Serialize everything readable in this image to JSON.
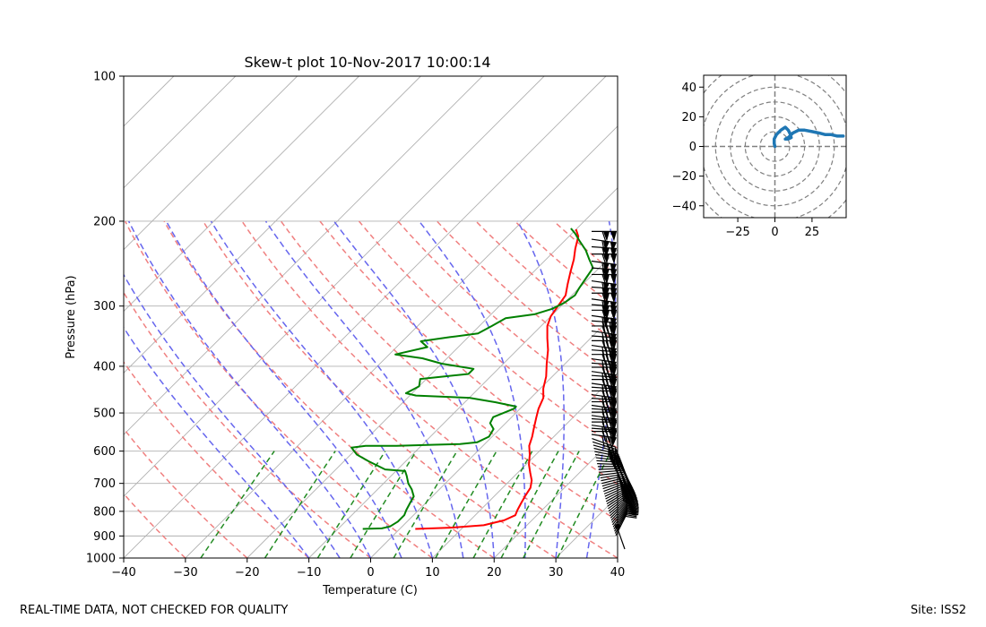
{
  "footer": {
    "quality_note": "REAL-TIME DATA, NOT CHECKED FOR QUALITY",
    "site": "Site: ISS2"
  },
  "colors": {
    "temperature": "#ff0000",
    "dewpoint": "#008000",
    "dry_adiabat": "#f08080",
    "moist_adiabat": "#6666ee",
    "mixing_ratio": "#228b22",
    "hodograph": "#1f77b4"
  },
  "chart_data": [
    {
      "type": "line",
      "subtype": "skew-t",
      "title": "Skew-t plot 10-Nov-2017 10:00:14",
      "xlabel": "Temperature (C)",
      "ylabel": "Pressure (hPa)",
      "xlim": [
        -40,
        40
      ],
      "ylim": [
        1000,
        100
      ],
      "y_scale": "log",
      "grid": true,
      "x_ticks": [
        "−40",
        "−30",
        "−20",
        "−10",
        "0",
        "10",
        "20",
        "30",
        "40"
      ],
      "y_ticks": [
        "100",
        "200",
        "300",
        "400",
        "500",
        "600",
        "700",
        "800",
        "900",
        "1000"
      ],
      "series": [
        {
          "role": "temperature",
          "points": [
            [
              2.5,
              870
            ],
            [
              8,
              865
            ],
            [
              13,
              855
            ],
            [
              15.5,
              835
            ],
            [
              16.5,
              815
            ],
            [
              16,
              795
            ],
            [
              15.5,
              770
            ],
            [
              15,
              745
            ],
            [
              14.5,
              715
            ],
            [
              13.5,
              690
            ],
            [
              12,
              665
            ],
            [
              10.5,
              640
            ],
            [
              9,
              610
            ],
            [
              7.5,
              585
            ],
            [
              6.5,
              560
            ],
            [
              5.5,
              540
            ],
            [
              4,
              510
            ],
            [
              3,
              490
            ],
            [
              2,
              465
            ],
            [
              0.5,
              445
            ],
            [
              -1,
              420
            ],
            [
              -3,
              395
            ],
            [
              -5,
              370
            ],
            [
              -7,
              350
            ],
            [
              -9,
              330
            ],
            [
              -10,
              315
            ],
            [
              -10.5,
              300
            ],
            [
              -11,
              285
            ],
            [
              -12.5,
              270
            ],
            [
              -14,
              255
            ],
            [
              -15.5,
              240
            ],
            [
              -17,
              228
            ],
            [
              -18.5,
              215
            ],
            [
              -20,
              208
            ]
          ]
        },
        {
          "role": "dewpoint",
          "points": [
            [
              -6,
              870
            ],
            [
              -3,
              868
            ],
            [
              -2,
              860
            ],
            [
              -1.5,
              840
            ],
            [
              -1.5,
              815
            ],
            [
              -2,
              795
            ],
            [
              -2.5,
              770
            ],
            [
              -3,
              745
            ],
            [
              -4.5,
              720
            ],
            [
              -6,
              700
            ],
            [
              -7.5,
              675
            ],
            [
              -8.5,
              660
            ],
            [
              -12,
              655
            ],
            [
              -16,
              630
            ],
            [
              -19,
              610
            ],
            [
              -21,
              590
            ],
            [
              -19,
              585
            ],
            [
              -14,
              585
            ],
            [
              -8,
              582
            ],
            [
              -4,
              580
            ],
            [
              -1.5,
              575
            ],
            [
              -0.5,
              560
            ],
            [
              -1,
              540
            ],
            [
              -2.5,
              525
            ],
            [
              -3,
              510
            ],
            [
              -1,
              490
            ],
            [
              -1,
              485
            ],
            [
              -3,
              480
            ],
            [
              -5,
              475
            ],
            [
              -10,
              465
            ],
            [
              -19,
              460
            ],
            [
              -21,
              455
            ],
            [
              -20,
              440
            ],
            [
              -21,
              425
            ],
            [
              -14,
              415
            ],
            [
              -14,
              405
            ],
            [
              -20,
              395
            ],
            [
              -24,
              385
            ],
            [
              -29,
              378
            ],
            [
              -25,
              365
            ],
            [
              -27,
              355
            ],
            [
              -23,
              348
            ],
            [
              -19,
              342
            ],
            [
              -18,
              330
            ],
            [
              -17,
              318
            ],
            [
              -13,
              312
            ],
            [
              -11,
              304
            ],
            [
              -10,
              295
            ],
            [
              -9.5,
              285
            ],
            [
              -10,
              275
            ],
            [
              -10.5,
              262
            ],
            [
              -11,
              250
            ],
            [
              -13,
              240
            ],
            [
              -15,
              230
            ],
            [
              -17.5,
              220
            ],
            [
              -19.5,
              212
            ],
            [
              -21,
              207
            ]
          ]
        }
      ],
      "wind_barbs": true
    },
    {
      "type": "line",
      "subtype": "hodograph",
      "xlim": [
        -48,
        48
      ],
      "ylim": [
        -48,
        48
      ],
      "x_ticks": [
        "−25",
        "0",
        "25"
      ],
      "y_ticks": [
        "−40",
        "−20",
        "0",
        "20",
        "40"
      ],
      "rings": [
        10,
        20,
        30,
        40,
        50,
        60,
        70
      ],
      "series": [
        {
          "role": "wind",
          "points": [
            [
              0,
              0
            ],
            [
              -0.5,
              2
            ],
            [
              -0.5,
              5
            ],
            [
              1,
              8
            ],
            [
              4,
              11
            ],
            [
              7,
              13
            ],
            [
              9,
              11
            ],
            [
              10,
              9
            ],
            [
              11,
              6
            ],
            [
              9,
              5
            ],
            [
              7,
              5
            ],
            [
              9,
              6
            ],
            [
              12,
              9
            ],
            [
              16,
              11
            ],
            [
              20,
              11
            ],
            [
              25,
              10
            ],
            [
              30,
              9
            ],
            [
              34,
              8
            ],
            [
              38,
              8
            ],
            [
              42,
              7
            ],
            [
              46,
              7
            ]
          ]
        }
      ]
    }
  ]
}
